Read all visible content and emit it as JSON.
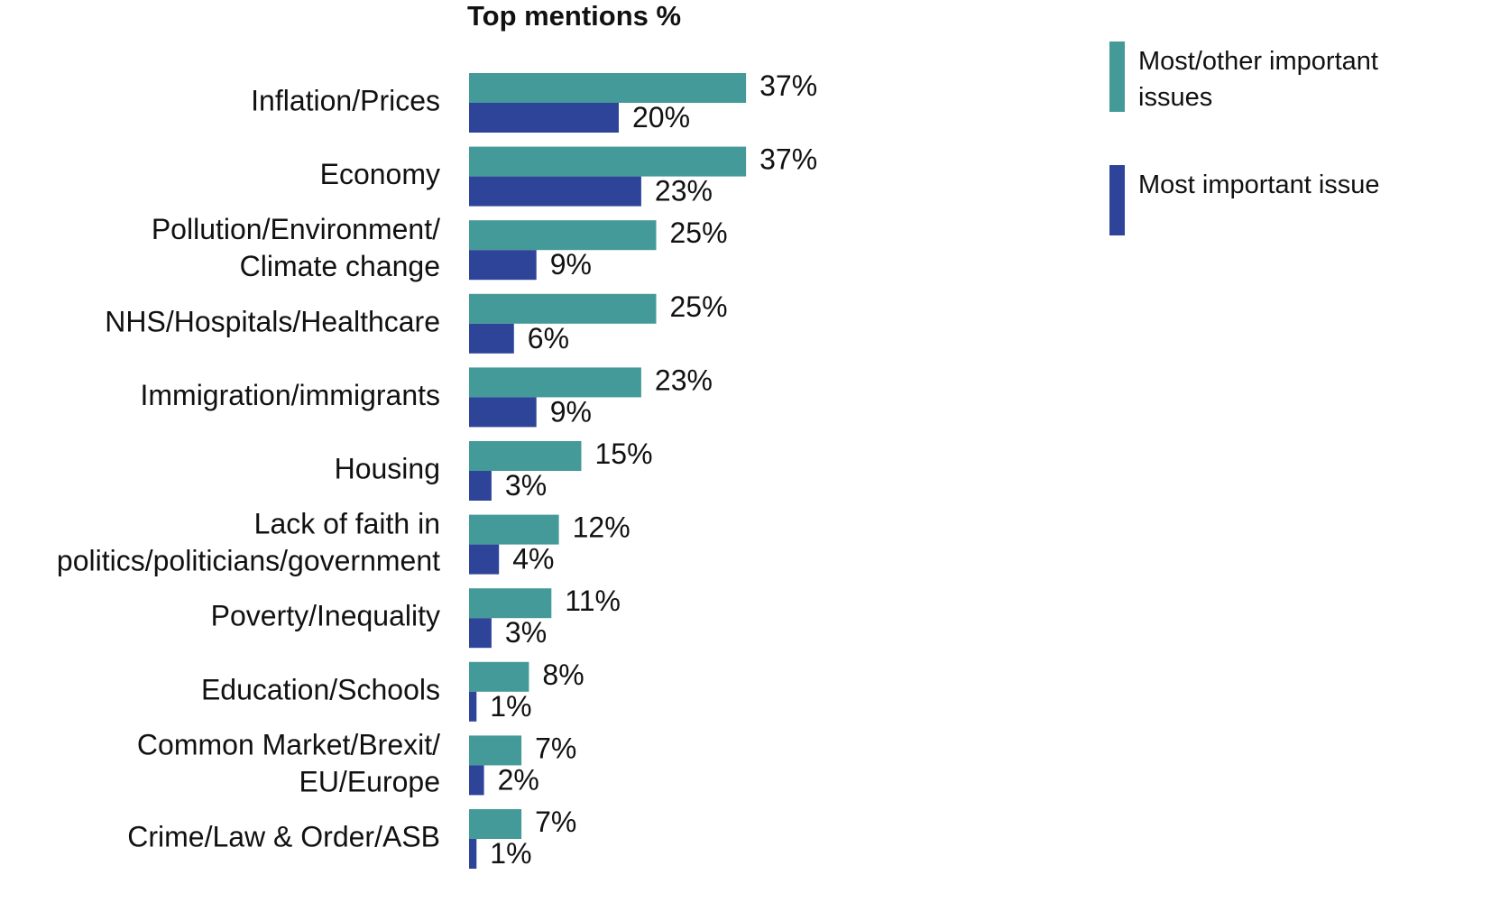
{
  "chart_data": {
    "type": "bar",
    "orientation": "horizontal",
    "title": "Top mentions %",
    "categories": [
      [
        "Inflation/Prices"
      ],
      [
        "Economy"
      ],
      [
        "Pollution/Environment/",
        "Climate change"
      ],
      [
        "NHS/Hospitals/Healthcare"
      ],
      [
        "Immigration/immigrants"
      ],
      [
        "Housing"
      ],
      [
        "Lack of faith in",
        "politics/politicians/government"
      ],
      [
        "Poverty/Inequality"
      ],
      [
        "Education/Schools"
      ],
      [
        "Common Market/Brexit/",
        "EU/Europe"
      ],
      [
        "Crime/Law & Order/ASB"
      ]
    ],
    "series": [
      {
        "name": "Most/other important issues",
        "color": "#439a98",
        "values": [
          37,
          37,
          25,
          25,
          23,
          15,
          12,
          11,
          8,
          7,
          7
        ],
        "value_labels": [
          "37%",
          "37%",
          "25%",
          "25%",
          "23%",
          "15%",
          "12%",
          "11%",
          "8%",
          "7%",
          "7%"
        ]
      },
      {
        "name": "Most important issue",
        "color": "#2e4499",
        "values": [
          20,
          23,
          9,
          6,
          9,
          3,
          4,
          3,
          1,
          2,
          1
        ],
        "value_labels": [
          "20%",
          "23%",
          "9%",
          "6%",
          "9%",
          "3%",
          "4%",
          "3%",
          "1%",
          "2%",
          "1%"
        ]
      }
    ],
    "legend": "top-right"
  }
}
